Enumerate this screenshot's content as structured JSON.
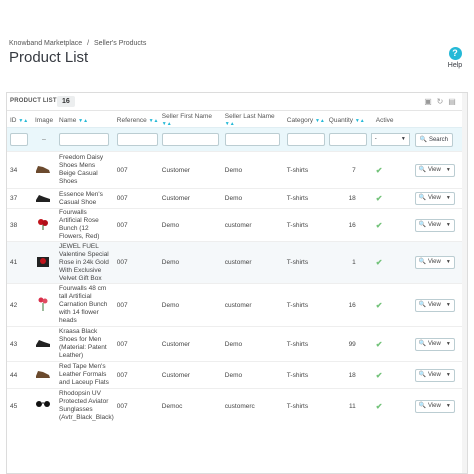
{
  "breadcrumb": [
    "Knowband Marketplace",
    "/",
    "Seller's Products"
  ],
  "page_title": "Product List",
  "help": {
    "icon": "?",
    "label": "Help"
  },
  "panel": {
    "title": "PRODUCT LIST",
    "count": "16"
  },
  "columns": [
    "ID",
    "Image",
    "Name",
    "Reference",
    "Seller First Name",
    "Seller Last Name",
    "Category",
    "Quantity",
    "Active"
  ],
  "filter": {
    "active_value": "-",
    "search_label": "Search"
  },
  "rows": [
    {
      "id": "34",
      "name": [
        "Freedom Daisy",
        "Shoes Mens",
        "Beige Casual",
        "Shoes"
      ],
      "reference": "007",
      "first": "Customer",
      "last": "Demo",
      "category": "T-shirts",
      "qty": "7",
      "image": "brown-shoe"
    },
    {
      "id": "37",
      "name": [
        "Essence Men's",
        "Casual Shoe"
      ],
      "reference": "007",
      "first": "Customer",
      "last": "Demo",
      "category": "T-shirts",
      "qty": "18",
      "image": "black-shoe"
    },
    {
      "id": "38",
      "name": [
        "Fourwalls",
        "Artificial Rose",
        "Bunch (12",
        "Flowers, Red)"
      ],
      "reference": "007",
      "first": "Demo",
      "last": "customer",
      "category": "T-shirts",
      "qty": "16",
      "image": "red-rose"
    },
    {
      "id": "41",
      "name": [
        "JEWEL FUEL",
        "Valentine Special",
        "Rose in 24k Gold",
        "With Exclusive",
        "Velvet Gift Box"
      ],
      "reference": "007",
      "first": "Demo",
      "last": "customer",
      "category": "T-shirts",
      "qty": "1",
      "image": "gold-rose"
    },
    {
      "id": "42",
      "name": [
        "Fourwalls 48 cm",
        "tall Artificial",
        "Carnation Bunch",
        "with 14 flower",
        "heads"
      ],
      "reference": "007",
      "first": "Demo",
      "last": "customer",
      "category": "T-shirts",
      "qty": "16",
      "image": "carnation"
    },
    {
      "id": "43",
      "name": [
        "Kraasa Black",
        "Shoes for Men",
        "(Material: Patent",
        "Leather)"
      ],
      "reference": "007",
      "first": "Customer",
      "last": "Demo",
      "category": "T-shirts",
      "qty": "99",
      "image": "black-shoe"
    },
    {
      "id": "44",
      "name": [
        "Red Tape Men's",
        "Leather Formals",
        "and Laceup Flats"
      ],
      "reference": "007",
      "first": "Customer",
      "last": "Demo",
      "category": "T-shirts",
      "qty": "18",
      "image": "brown-shoe"
    },
    {
      "id": "45",
      "name": [
        "Rhodopsin UV",
        "Protected Aviator",
        "Sunglasses",
        "(Avtr_Black_Black)"
      ],
      "reference": "007",
      "first": "Democ",
      "last": "customerc",
      "category": "T-shirts",
      "qty": "11",
      "image": "sunglasses"
    }
  ],
  "view_label": "View",
  "accent": "#25b9d7",
  "active_color": "#72c279"
}
